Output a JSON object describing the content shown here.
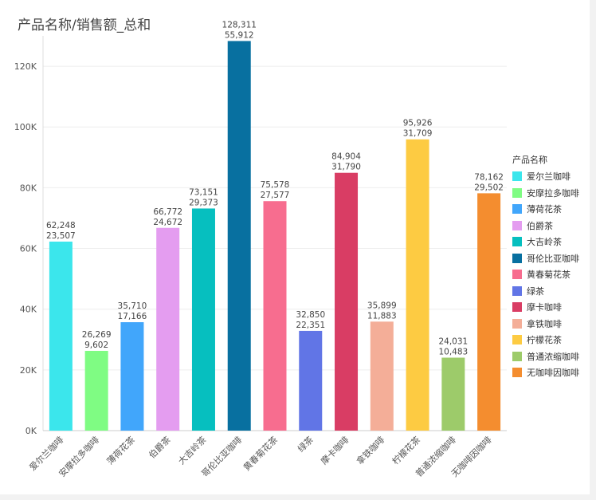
{
  "chart_data": {
    "type": "bar",
    "title": "产品名称/销售额_总和",
    "legend_title": "产品名称",
    "xlabel": "",
    "ylabel": "",
    "ylim": [
      0,
      130000
    ],
    "yticks": [
      0,
      20000,
      40000,
      60000,
      80000,
      100000,
      120000
    ],
    "ytick_labels": [
      "0K",
      "20K",
      "40K",
      "60K",
      "80K",
      "100K",
      "120K"
    ],
    "categories": [
      "爱尔兰咖啡",
      "安摩拉多咖啡",
      "薄荷花茶",
      "伯爵茶",
      "大吉岭茶",
      "哥伦比亚咖啡",
      "黄春菊花茶",
      "绿茶",
      "摩卡咖啡",
      "拿铁咖啡",
      "柠檬花茶",
      "普通浓缩咖啡",
      "无咖啡因咖啡"
    ],
    "values": [
      62248,
      26269,
      35710,
      66772,
      73151,
      128311,
      75578,
      32850,
      84904,
      35899,
      95926,
      24031,
      78162
    ],
    "value_labels": [
      "62,248",
      "26,269",
      "35,710",
      "66,772",
      "73,151",
      "128,311",
      "75,578",
      "32,850",
      "84,904",
      "35,899",
      "95,926",
      "24,031",
      "78,162"
    ],
    "secondary_labels": [
      "23,507",
      "9,602",
      "17,166",
      "24,672",
      "29,373",
      "55,912",
      "27,577",
      "22,351",
      "31,790",
      "11,883",
      "31,709",
      "10,483",
      "29,502"
    ],
    "colors": [
      "#3be6ec",
      "#7ffc83",
      "#41a6fb",
      "#e49df0",
      "#06bfbf",
      "#0870a0",
      "#f76d8f",
      "#6175e6",
      "#d93d64",
      "#f4ae98",
      "#fdcb42",
      "#9dcb6a",
      "#f48d2f"
    ],
    "legend_position": "right",
    "grid": true
  }
}
